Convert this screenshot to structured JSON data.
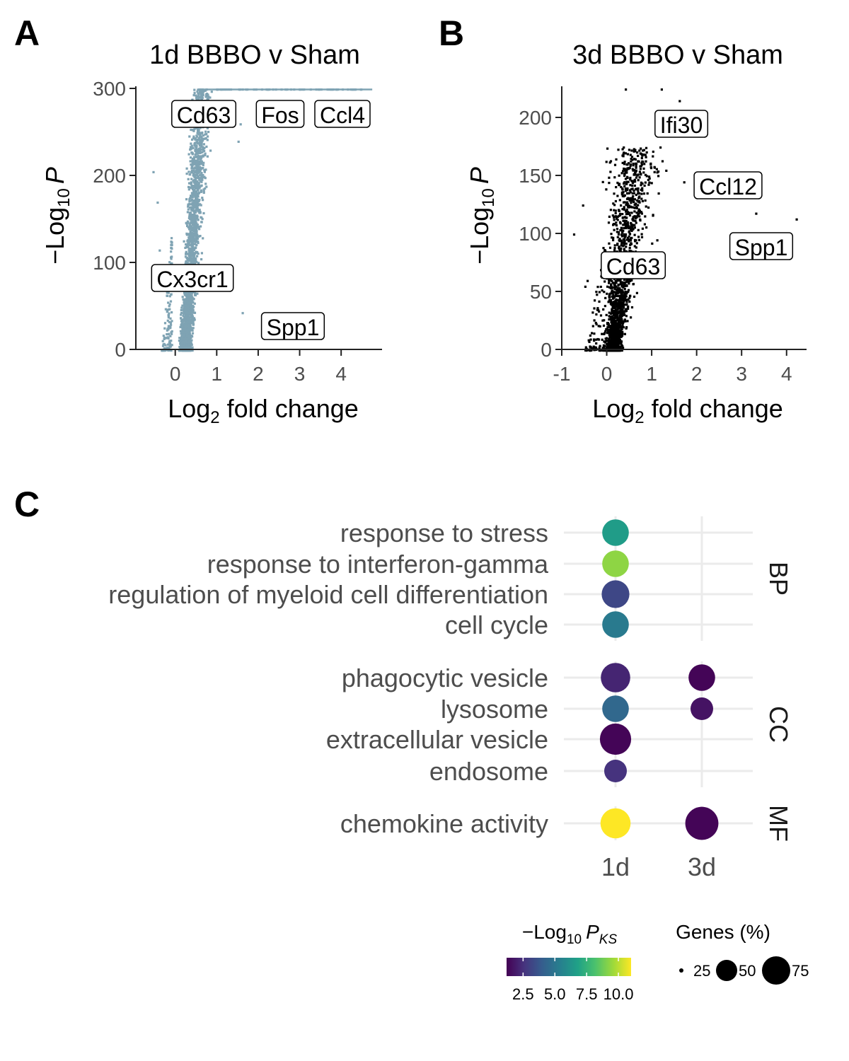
{
  "panels": {
    "a": {
      "letter": "A",
      "title": "1d BBBO v Sham"
    },
    "b": {
      "letter": "B",
      "title": "3d BBBO v Sham"
    },
    "c": {
      "letter": "C"
    }
  },
  "volcano_axis_text": {
    "ylab_main": "Log",
    "ylab_sub": "10",
    "ylab_tail": "P",
    "ylab_minus": "−",
    "xlab_main": "Log",
    "xlab_sub": "2",
    "xlab_tail": " fold change"
  },
  "legend": {
    "color_title_main": "Log",
    "color_title_sub": "10",
    "color_title_p": "P",
    "color_title_ks": "KS",
    "color_title_minus": "−",
    "color_ticks": [
      "2.5",
      "5.0",
      "7.5",
      "10.0"
    ],
    "size_title": "Genes (%)",
    "size_labels": [
      "25",
      "50",
      "75"
    ]
  },
  "colors": {
    "volcano_1d": "#7fa3b3",
    "volcano_3d": "#000000",
    "viridis": [
      "#440154",
      "#46337e",
      "#365c8d",
      "#277f8e",
      "#1fa187",
      "#4ac16d",
      "#a0da39",
      "#fde725"
    ]
  },
  "chart_data": [
    {
      "type": "scatter",
      "id": "volcano_1d",
      "title": "1d BBBO v Sham",
      "xlabel": "Log2 fold change",
      "ylabel": "-Log10 P",
      "xlim": [
        -0.95,
        4.85
      ],
      "ylim": [
        0,
        300
      ],
      "xticks": [
        0,
        1,
        2,
        3,
        4
      ],
      "yticks": [
        0,
        100,
        200,
        300
      ],
      "labeled_genes": [
        {
          "gene": "Cd63",
          "x": 0.55,
          "y": 300
        },
        {
          "gene": "Fos",
          "x": 2.3,
          "y": 300
        },
        {
          "gene": "Ccl4",
          "x": 3.6,
          "y": 300
        },
        {
          "gene": "Cx3cr1",
          "x": -0.2,
          "y": 100
        },
        {
          "gene": "Spp1",
          "x": 1.65,
          "y": 45
        }
      ]
    },
    {
      "type": "scatter",
      "id": "volcano_3d",
      "title": "3d BBBO v Sham",
      "xlabel": "Log2 fold change",
      "ylabel": "-Log10 P",
      "xlim": [
        -1,
        4.35
      ],
      "ylim": [
        0,
        225
      ],
      "xticks": [
        -1,
        0,
        1,
        2,
        3,
        4
      ],
      "yticks": [
        0,
        50,
        100,
        150,
        200
      ],
      "labeled_genes": [
        {
          "gene": "Ifi30",
          "x": 0.7,
          "y": 210
        },
        {
          "gene": "Ccl12",
          "x": 1.7,
          "y": 131
        },
        {
          "gene": "Spp1",
          "x": 4.2,
          "y": 113
        },
        {
          "gene": "Cd63",
          "x": 0.55,
          "y": 85
        }
      ]
    },
    {
      "type": "scatter",
      "id": "go_dotplot",
      "x_categories": [
        "1d",
        "3d"
      ],
      "groups": [
        {
          "name": "BP",
          "terms": [
            "response to stress",
            "response to interferon-gamma",
            "regulation of myeloid cell differentiation",
            "cell cycle"
          ]
        },
        {
          "name": "CC",
          "terms": [
            "phagocytic vesicle",
            "lysosome",
            "extracellular vesicle",
            "endosome"
          ]
        },
        {
          "name": "MF",
          "terms": [
            "chemokine activity"
          ]
        }
      ],
      "color_scale": {
        "metric": "-Log10 P_KS",
        "range": [
          1.2,
          11
        ]
      },
      "size_scale": {
        "metric": "Genes (%)",
        "range": [
          8,
          90
        ]
      },
      "points": [
        {
          "term": "response to stress",
          "x": "1d",
          "neglog10p": 6.6,
          "genes_pct": 45
        },
        {
          "term": "response to interferon-gamma",
          "x": "1d",
          "neglog10p": 9.3,
          "genes_pct": 45
        },
        {
          "term": "regulation of myeloid cell differentiation",
          "x": "1d",
          "neglog10p": 3.3,
          "genes_pct": 50
        },
        {
          "term": "cell cycle",
          "x": "1d",
          "neglog10p": 5.2,
          "genes_pct": 45
        },
        {
          "term": "phagocytic vesicle",
          "x": "1d",
          "neglog10p": 2.2,
          "genes_pct": 58
        },
        {
          "term": "phagocytic vesicle",
          "x": "3d",
          "neglog10p": 1.3,
          "genes_pct": 45
        },
        {
          "term": "lysosome",
          "x": "1d",
          "neglog10p": 4.5,
          "genes_pct": 45
        },
        {
          "term": "lysosome",
          "x": "3d",
          "neglog10p": 1.7,
          "genes_pct": 30
        },
        {
          "term": "extracellular vesicle",
          "x": "1d",
          "neglog10p": 1.3,
          "genes_pct": 68
        },
        {
          "term": "endosome",
          "x": "1d",
          "neglog10p": 2.6,
          "genes_pct": 30
        },
        {
          "term": "chemokine activity",
          "x": "1d",
          "neglog10p": 11.0,
          "genes_pct": 62
        },
        {
          "term": "chemokine activity",
          "x": "3d",
          "neglog10p": 1.3,
          "genes_pct": 78
        }
      ]
    }
  ]
}
